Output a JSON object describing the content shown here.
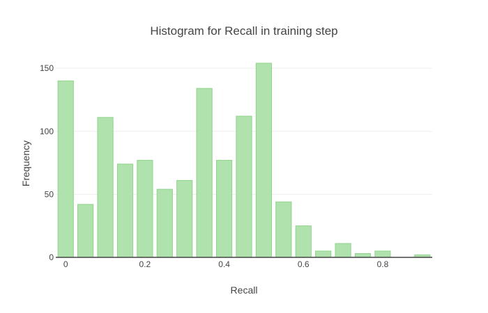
{
  "chart_data": {
    "type": "bar",
    "title": "Histogram for Recall in training step",
    "xlabel": "Recall",
    "ylabel": "Frequency",
    "bin_width": 0.05,
    "x": [
      0,
      0.05,
      0.1,
      0.15,
      0.2,
      0.25,
      0.3,
      0.35,
      0.4,
      0.45,
      0.5,
      0.55,
      0.6,
      0.65,
      0.7,
      0.75,
      0.8,
      0.85,
      0.9
    ],
    "values": [
      140,
      42,
      111,
      74,
      77,
      54,
      61,
      134,
      77,
      112,
      154,
      44,
      25,
      5,
      11,
      3,
      5,
      0,
      2
    ],
    "xlim": [
      -0.025,
      0.925
    ],
    "ylim": [
      0,
      160
    ],
    "x_ticks": [
      0,
      0.2,
      0.4,
      0.6,
      0.8
    ],
    "x_tick_labels": [
      "0",
      "0.2",
      "0.4",
      "0.6",
      "0.8"
    ],
    "y_ticks": [
      0,
      50,
      100,
      150
    ],
    "y_tick_labels": [
      "0",
      "50",
      "100",
      "150"
    ],
    "grid": true,
    "bar_color": "#b0e2ad",
    "bar_edge_color": "#8fd48b"
  }
}
